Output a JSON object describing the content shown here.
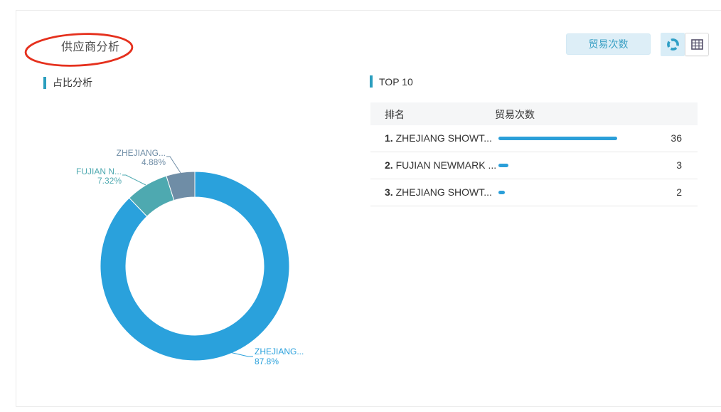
{
  "panel": {
    "title": "供应商分析",
    "metric_button_label": "贸易次数",
    "view_toggle": {
      "active_view": "donut-chart-view",
      "options": [
        "donut-chart-view",
        "table-view"
      ]
    },
    "annotation": "hand-drawn red ellipse circling the panel title"
  },
  "sections": {
    "pie_title": "占比分析",
    "top_title": "TOP 10"
  },
  "chart_data": {
    "type": "pie",
    "title": "占比分析",
    "donut": true,
    "start_angle": "top",
    "direction": "clockwise",
    "legend_position": "none",
    "series_name": "贸易次数",
    "slices": [
      {
        "label": "ZHEJIANG...",
        "pct_label": "87.8%",
        "value": 87.8,
        "color": "#2aa1dc"
      },
      {
        "label": "FUJIAN N...",
        "pct_label": "7.32%",
        "value": 7.32,
        "color": "#4ea9b0"
      },
      {
        "label": "ZHEJIANG...",
        "pct_label": "4.88%",
        "value": 4.88,
        "color": "#6f8da6"
      }
    ]
  },
  "table": {
    "headers": {
      "rank": "排名",
      "metric": "贸易次数"
    },
    "rows": [
      {
        "rank": "1.",
        "name": "ZHEJIANG SHOWT...",
        "value": 36
      },
      {
        "rank": "2.",
        "name": "FUJIAN NEWMARK ...",
        "value": 3
      },
      {
        "rank": "3.",
        "name": "ZHEJIANG SHOWT...",
        "value": 2
      }
    ]
  },
  "colors": {
    "accent_teal": "#2b9ebe",
    "bar_blue": "#2b9fd9",
    "button_bg": "#ddeef7",
    "button_text": "#3aa0c4",
    "annotation_red": "#e5301d",
    "header_bg": "#f5f6f7",
    "text_dark": "#333333",
    "card_border": "#ebebeb",
    "toggle_active_bg": "#d9edf7",
    "toggle_icon_teal": "#2f9fc6",
    "grid_icon_dark": "#55506a"
  }
}
